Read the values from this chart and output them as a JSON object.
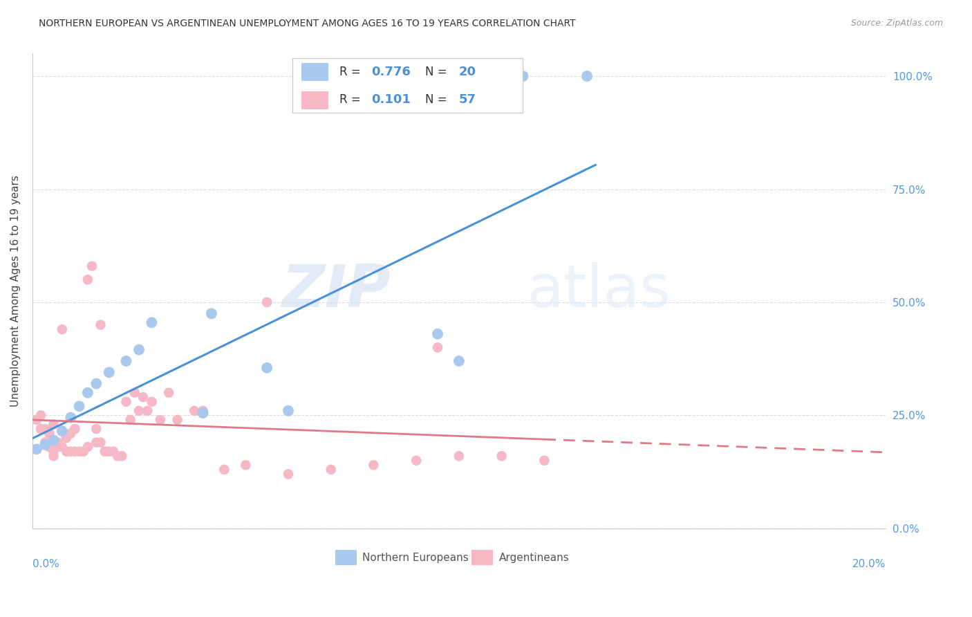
{
  "title": "NORTHERN EUROPEAN VS ARGENTINEAN UNEMPLOYMENT AMONG AGES 16 TO 19 YEARS CORRELATION CHART",
  "source": "Source: ZipAtlas.com",
  "ylabel": "Unemployment Among Ages 16 to 19 years",
  "watermark_zip": "ZIP",
  "watermark_atlas": "atlas",
  "blue_R": 0.776,
  "blue_N": 20,
  "pink_R": 0.101,
  "pink_N": 57,
  "blue_color": "#a8c8ee",
  "pink_color": "#f5b8c4",
  "blue_line_color": "#4a90d9",
  "pink_line_color": "#e07888",
  "axis_label_color": "#5599dd",
  "xmin": 0.0,
  "xmax": 0.2,
  "ymin": 0.0,
  "ymax": 1.05,
  "right_yticks": [
    0.0,
    0.25,
    0.5,
    0.75,
    1.0
  ],
  "right_yticklabels": [
    "0.0%",
    "25.0%",
    "50.0%",
    "75.0%",
    "100.0%"
  ],
  "grid_color": "#dddddd",
  "background_color": "#ffffff",
  "blue_scatter_x": [
    0.001,
    0.003,
    0.005,
    0.007,
    0.009,
    0.011,
    0.013,
    0.015,
    0.018,
    0.022,
    0.025,
    0.028,
    0.04,
    0.042,
    0.055,
    0.06,
    0.095,
    0.1,
    0.115,
    0.13
  ],
  "blue_scatter_y": [
    0.175,
    0.185,
    0.195,
    0.215,
    0.245,
    0.27,
    0.3,
    0.32,
    0.345,
    0.37,
    0.395,
    0.455,
    0.255,
    0.475,
    0.355,
    0.26,
    0.43,
    0.37,
    1.0,
    1.0
  ],
  "pink_scatter_x": [
    0.001,
    0.002,
    0.002,
    0.003,
    0.003,
    0.004,
    0.004,
    0.005,
    0.005,
    0.005,
    0.006,
    0.006,
    0.007,
    0.007,
    0.008,
    0.008,
    0.009,
    0.009,
    0.01,
    0.01,
    0.011,
    0.012,
    0.013,
    0.013,
    0.014,
    0.015,
    0.015,
    0.016,
    0.016,
    0.017,
    0.018,
    0.019,
    0.02,
    0.021,
    0.022,
    0.023,
    0.024,
    0.025,
    0.026,
    0.027,
    0.028,
    0.03,
    0.032,
    0.034,
    0.038,
    0.04,
    0.045,
    0.05,
    0.055,
    0.06,
    0.07,
    0.08,
    0.09,
    0.095,
    0.1,
    0.11,
    0.12
  ],
  "pink_scatter_y": [
    0.24,
    0.25,
    0.22,
    0.22,
    0.19,
    0.21,
    0.18,
    0.23,
    0.17,
    0.16,
    0.19,
    0.18,
    0.18,
    0.44,
    0.2,
    0.17,
    0.17,
    0.21,
    0.17,
    0.22,
    0.17,
    0.17,
    0.18,
    0.55,
    0.58,
    0.22,
    0.19,
    0.19,
    0.45,
    0.17,
    0.17,
    0.17,
    0.16,
    0.16,
    0.28,
    0.24,
    0.3,
    0.26,
    0.29,
    0.26,
    0.28,
    0.24,
    0.3,
    0.24,
    0.26,
    0.26,
    0.13,
    0.14,
    0.5,
    0.12,
    0.13,
    0.14,
    0.15,
    0.4,
    0.16,
    0.16,
    0.15
  ],
  "legend_label_blue": "Northern Europeans",
  "legend_label_pink": "Argentineans"
}
